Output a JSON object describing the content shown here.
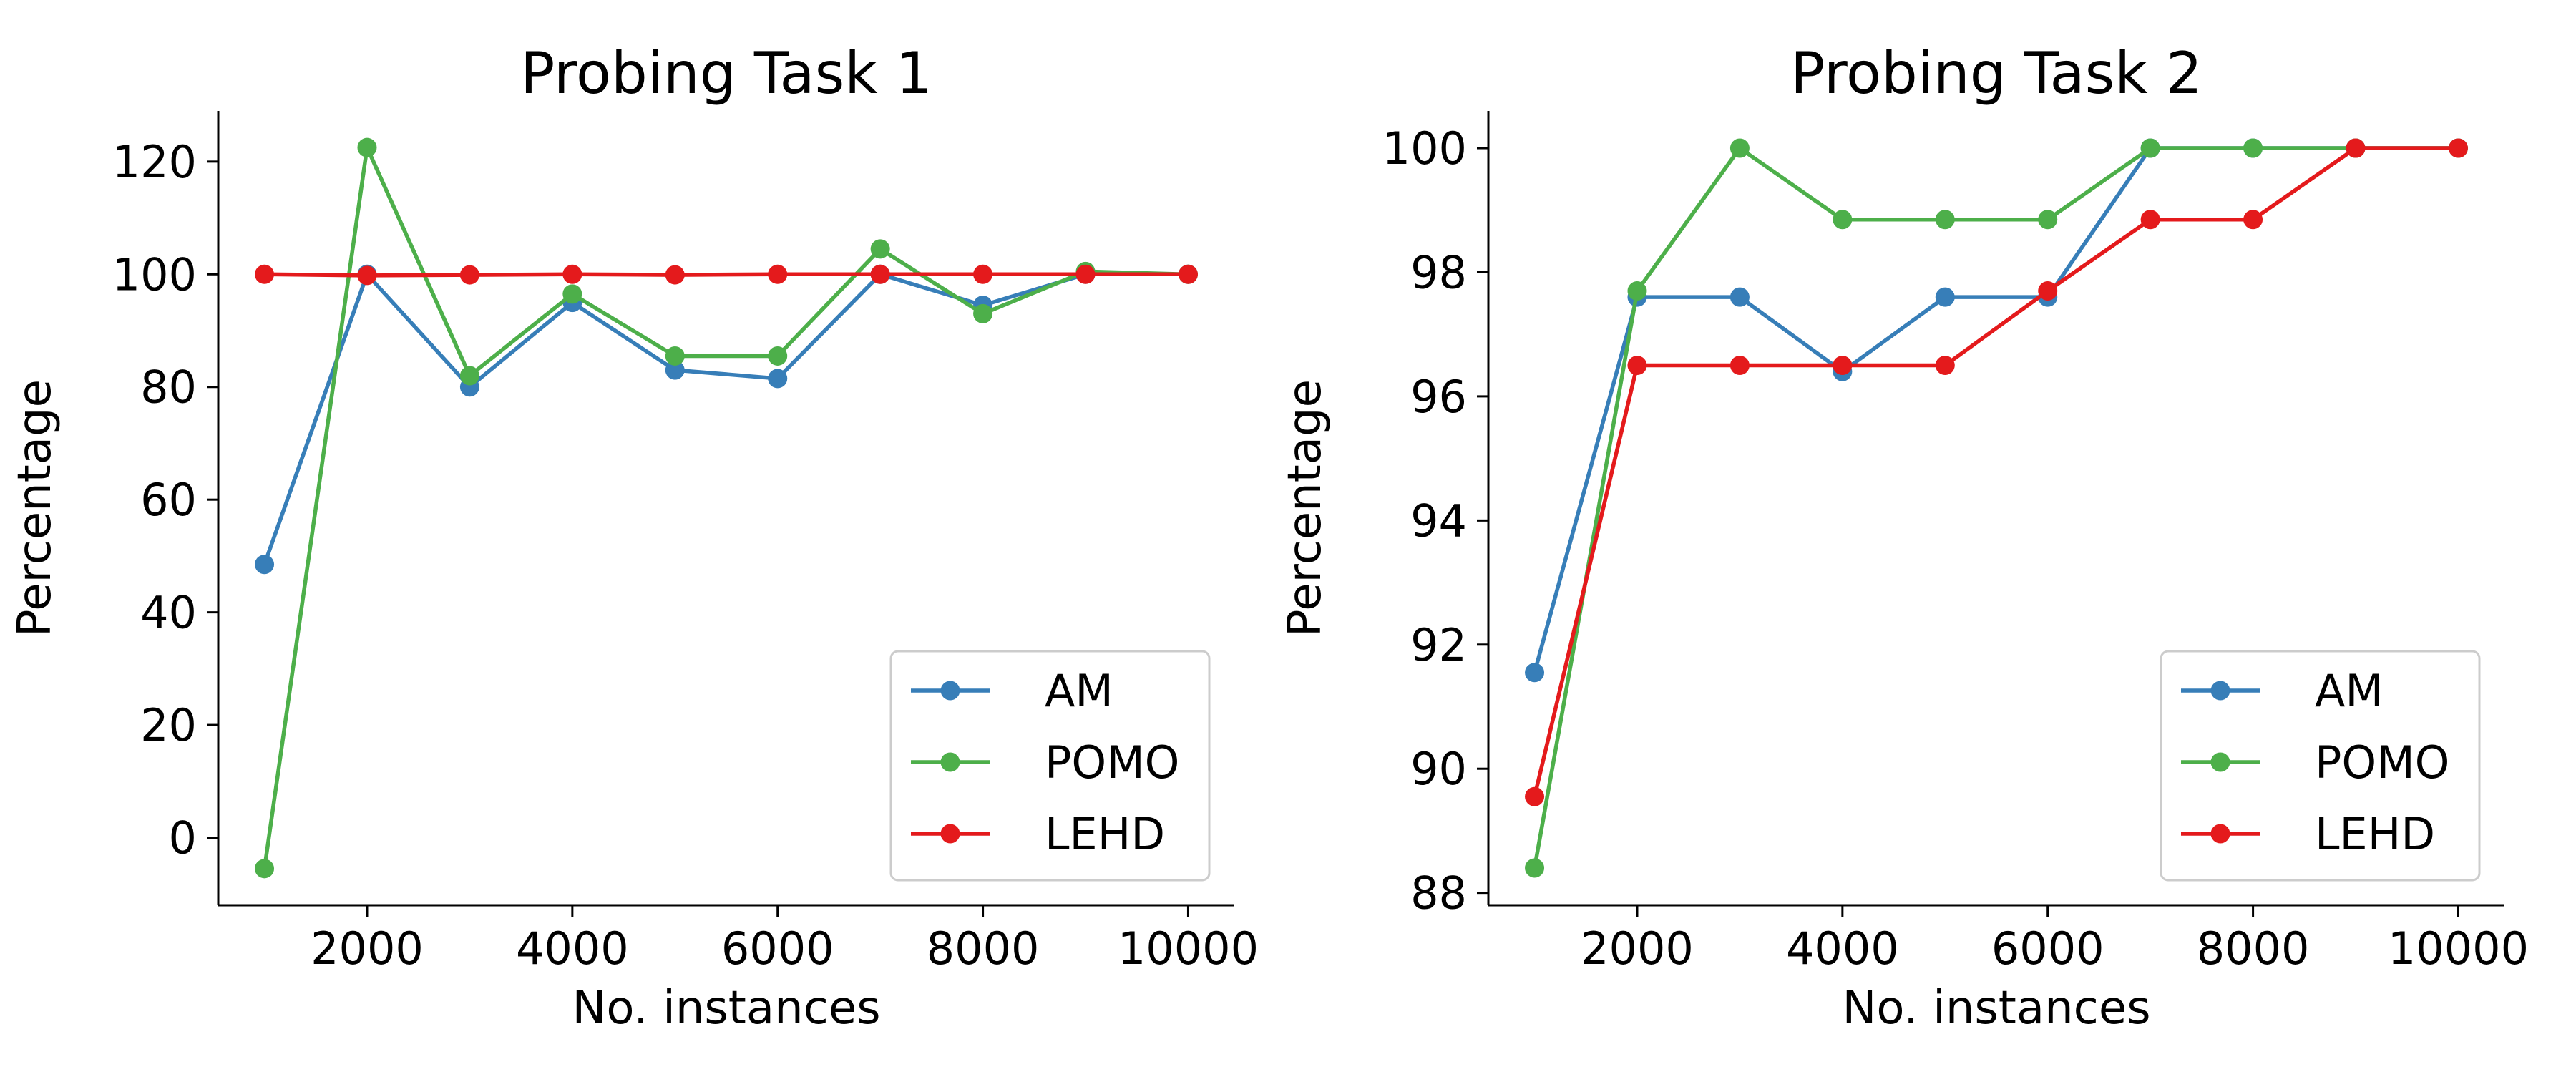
{
  "figure": {
    "colors": {
      "AM": "#377eb8",
      "POMO": "#4daf4a",
      "LEHD": "#e41a1c"
    }
  },
  "chart_data": [
    {
      "type": "line",
      "title": "Probing Task 1",
      "xlabel": "No. instances",
      "ylabel": "Percentage",
      "x": [
        1000,
        2000,
        3000,
        4000,
        5000,
        6000,
        7000,
        8000,
        9000,
        10000
      ],
      "xlim": [
        550,
        10450
      ],
      "ylim": [
        -12,
        129
      ],
      "xticks": [
        2000,
        4000,
        6000,
        8000,
        10000
      ],
      "yticks": [
        0,
        20,
        40,
        60,
        80,
        100,
        120
      ],
      "legend_position": "lower-right",
      "grid": false,
      "series": [
        {
          "name": "AM",
          "color": "#377eb8",
          "values": [
            48.5,
            100.0,
            80.0,
            95.0,
            83.0,
            81.5,
            100.0,
            94.5,
            100.0,
            100.0
          ]
        },
        {
          "name": "POMO",
          "color": "#4daf4a",
          "values": [
            -5.5,
            122.5,
            82.0,
            96.5,
            85.5,
            85.5,
            104.5,
            93.0,
            100.5,
            100.0
          ]
        },
        {
          "name": "LEHD",
          "color": "#e41a1c",
          "values": [
            100.0,
            99.8,
            99.9,
            100.0,
            99.9,
            100.0,
            100.0,
            100.0,
            100.0,
            100.0
          ]
        }
      ]
    },
    {
      "type": "line",
      "title": "Probing Task 2",
      "xlabel": "No. instances",
      "ylabel": "Percentage",
      "x": [
        1000,
        2000,
        3000,
        4000,
        5000,
        6000,
        7000,
        8000,
        9000,
        10000
      ],
      "xlim": [
        550,
        10450
      ],
      "ylim": [
        87.8,
        100.6
      ],
      "xticks": [
        2000,
        4000,
        6000,
        8000,
        10000
      ],
      "yticks": [
        88,
        90,
        92,
        94,
        96,
        98,
        100
      ],
      "legend_position": "lower-right",
      "grid": false,
      "series": [
        {
          "name": "AM",
          "color": "#377eb8",
          "values": [
            91.55,
            97.6,
            97.6,
            96.4,
            97.6,
            97.6,
            100.0,
            100.0,
            100.0,
            100.0
          ]
        },
        {
          "name": "POMO",
          "color": "#4daf4a",
          "values": [
            88.4,
            97.7,
            100.0,
            98.85,
            98.85,
            98.85,
            100.0,
            100.0,
            100.0,
            100.0
          ]
        },
        {
          "name": "LEHD",
          "color": "#e41a1c",
          "values": [
            89.55,
            96.5,
            96.5,
            96.5,
            96.5,
            97.7,
            98.85,
            98.85,
            100.0,
            100.0
          ]
        }
      ]
    }
  ]
}
